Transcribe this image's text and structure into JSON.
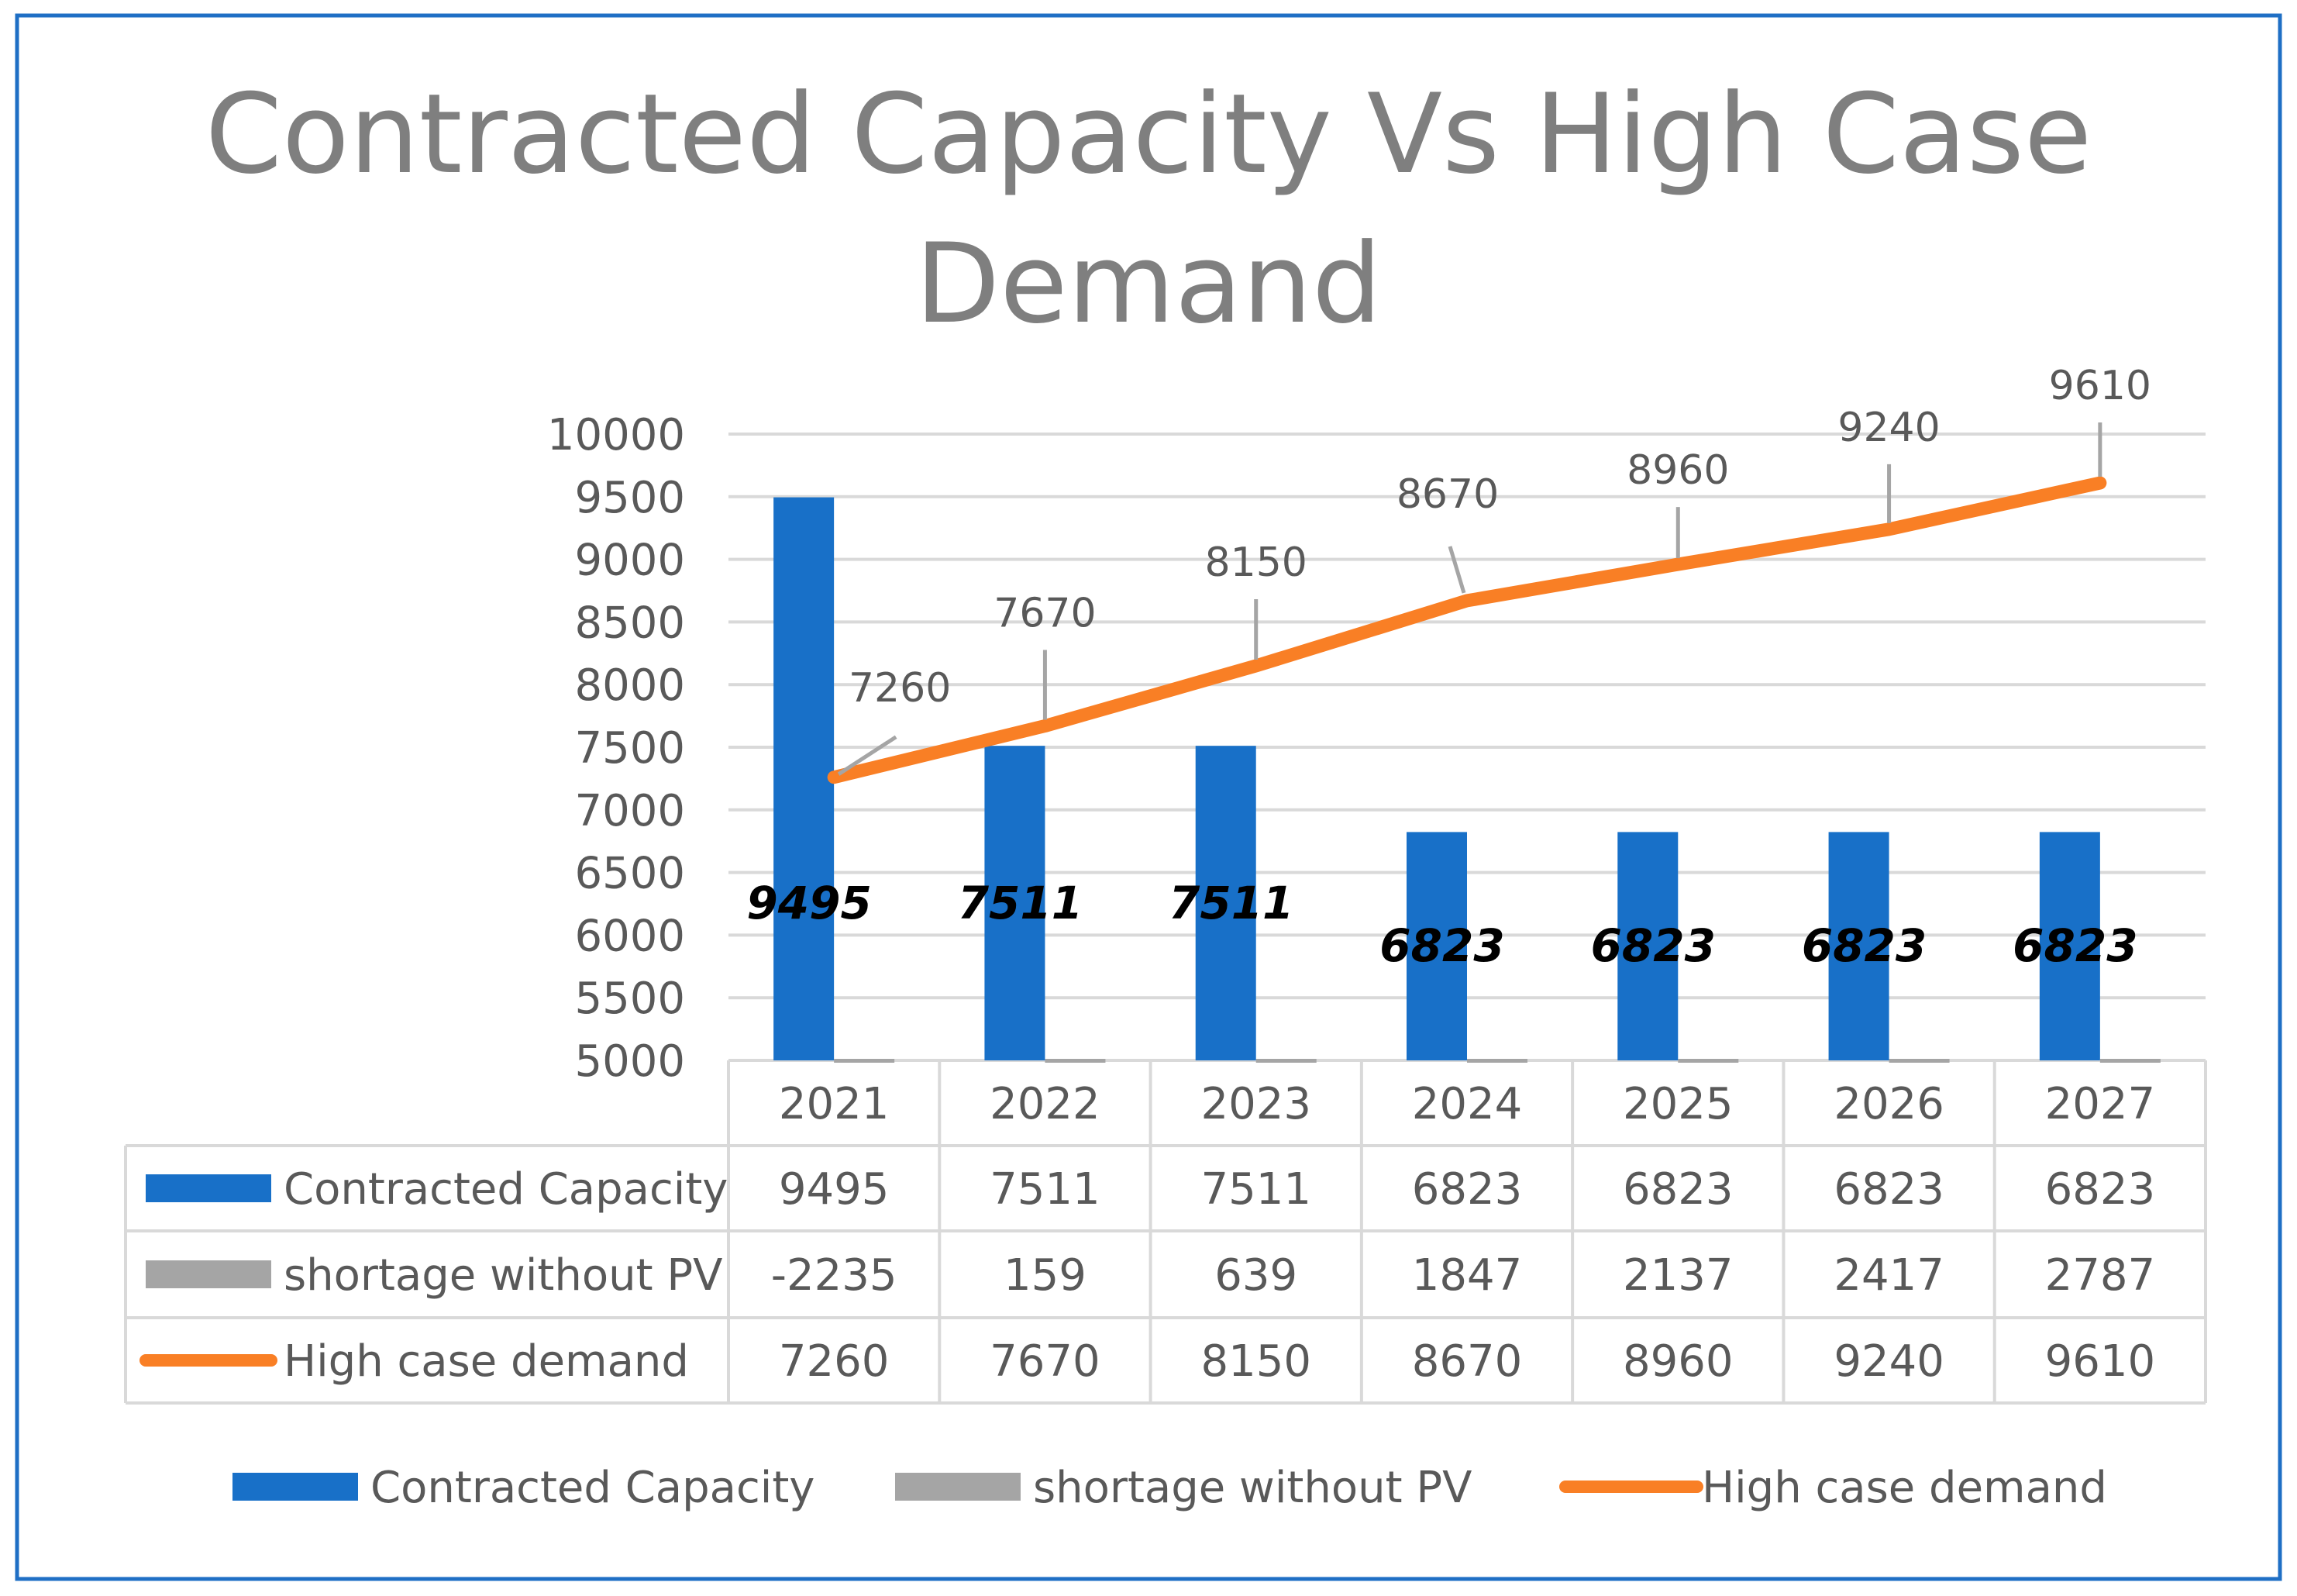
{
  "colors": {
    "frame": "#1f6fc5",
    "title": "#7f7f7f",
    "text": "#595959",
    "grid": "#d9d9d9",
    "bar": "#1870c8",
    "shortage": "#a5a5a5",
    "line": "#f97f25",
    "bar_label": "#000000"
  },
  "chart_data": {
    "type": "bar",
    "title": "Contracted Capacity Vs High Case Demand",
    "title_lines": [
      "Contracted Capacity Vs High Case",
      "Demand"
    ],
    "categories": [
      "2021",
      "2022",
      "2023",
      "2024",
      "2025",
      "2026",
      "2027"
    ],
    "ylim": [
      5000,
      10000
    ],
    "yticks": [
      "5000",
      "5500",
      "6000",
      "6500",
      "7000",
      "7500",
      "8000",
      "8500",
      "9000",
      "9500",
      "10000"
    ],
    "grid": true,
    "legend_position": "bottom",
    "data_table": true,
    "series": [
      {
        "name": "Contracted Capacity",
        "kind": "bar",
        "values": [
          9495,
          7511,
          7511,
          6823,
          6823,
          6823,
          6823
        ]
      },
      {
        "name": "shortage without PV",
        "kind": "bar",
        "values": [
          -2235,
          159,
          639,
          1847,
          2137,
          2417,
          2787
        ]
      },
      {
        "name": "High case demand",
        "kind": "line",
        "values": [
          7260,
          7670,
          8150,
          8670,
          8960,
          9240,
          9610
        ]
      }
    ]
  }
}
